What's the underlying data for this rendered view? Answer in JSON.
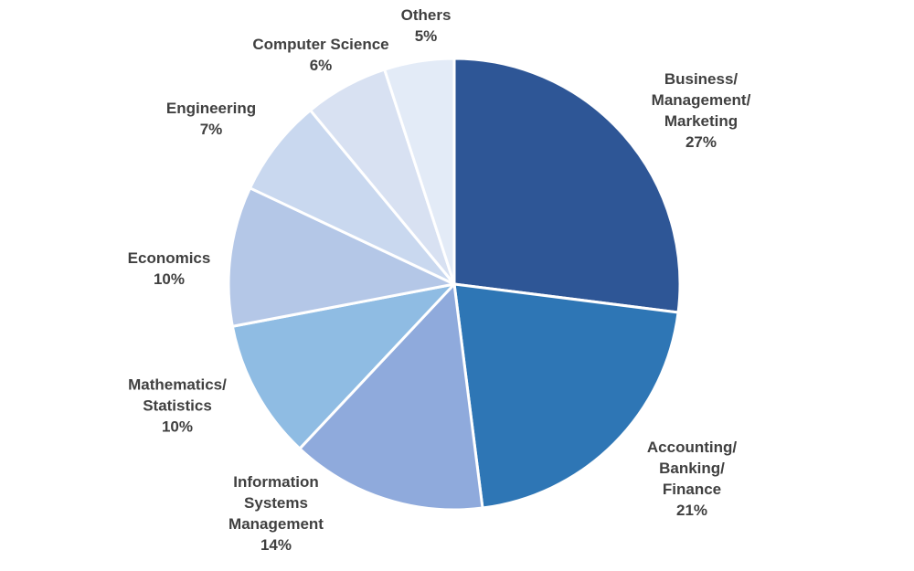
{
  "background_color": "#ffffff",
  "text_color": "#404040",
  "divider_color": "#ffffff",
  "chart_data": {
    "type": "pie",
    "title": "",
    "start_angle_deg": 0,
    "direction": "clockwise",
    "legend_position": "none",
    "labels_position": "outside",
    "total": 100,
    "segments": [
      {
        "label": "Business/Management/Marketing",
        "label_lines": [
          "Business/",
          "Management/",
          "Marketing"
        ],
        "value": 27,
        "value_label": "27%",
        "color": "#2E5696"
      },
      {
        "label": "Accounting/Banking/Finance",
        "label_lines": [
          "Accounting/",
          "Banking/",
          "Finance"
        ],
        "value": 21,
        "value_label": "21%",
        "color": "#2E76B5"
      },
      {
        "label": "Information Systems Management",
        "label_lines": [
          "Information",
          "Systems",
          "Management"
        ],
        "value": 14,
        "value_label": "14%",
        "color": "#8FAADC"
      },
      {
        "label": "Mathematics/Statistics",
        "label_lines": [
          "Mathematics/",
          "Statistics"
        ],
        "value": 10,
        "value_label": "10%",
        "color": "#8FBCE3"
      },
      {
        "label": "Economics",
        "label_lines": [
          "Economics"
        ],
        "value": 10,
        "value_label": "10%",
        "color": "#B4C7E7"
      },
      {
        "label": "Engineering",
        "label_lines": [
          "Engineering"
        ],
        "value": 7,
        "value_label": "7%",
        "color": "#C9D8EF"
      },
      {
        "label": "Computer Science",
        "label_lines": [
          "Computer Science"
        ],
        "value": 6,
        "value_label": "6%",
        "color": "#D8E1F2"
      },
      {
        "label": "Others",
        "label_lines": [
          "Others"
        ],
        "value": 5,
        "value_label": "5%",
        "color": "#E3EBF7"
      }
    ]
  }
}
